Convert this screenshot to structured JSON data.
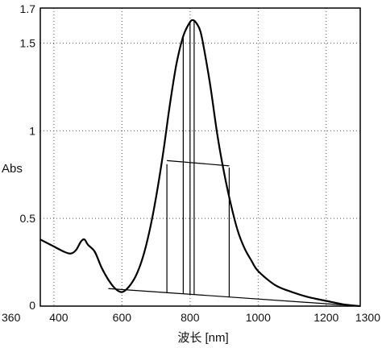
{
  "chart_data": {
    "type": "line",
    "xlabel": "波长 [nm]",
    "ylabel": "Abs",
    "xlim": [
      360,
      1300
    ],
    "ylim": [
      0,
      1.7
    ],
    "grid": true,
    "x_ticks": [
      {
        "value": 360,
        "label": "360"
      },
      {
        "value": 400,
        "label": "400"
      },
      {
        "value": 600,
        "label": "600"
      },
      {
        "value": 800,
        "label": "800"
      },
      {
        "value": 1000,
        "label": "1000"
      },
      {
        "value": 1200,
        "label": "1200"
      },
      {
        "value": 1300,
        "label": "1300"
      }
    ],
    "y_ticks": [
      {
        "value": 0,
        "label": "0"
      },
      {
        "value": 0.5,
        "label": "0.5"
      },
      {
        "value": 1,
        "label": "1"
      },
      {
        "value": 1.5,
        "label": "1.5"
      },
      {
        "value": 1.7,
        "label": "1.7"
      }
    ],
    "series": [
      {
        "x": [
          360,
          400,
          430,
          450,
          465,
          480,
          490,
          500,
          520,
          540,
          560,
          580,
          600,
          620,
          640,
          660,
          680,
          700,
          720,
          740,
          760,
          780,
          800,
          810,
          820,
          830,
          840,
          860,
          880,
          900,
          920,
          940,
          960,
          980,
          1000,
          1050,
          1100,
          1150,
          1200,
          1250,
          1300
        ],
        "y": [
          0.38,
          0.34,
          0.31,
          0.3,
          0.32,
          0.37,
          0.38,
          0.35,
          0.31,
          0.22,
          0.15,
          0.1,
          0.08,
          0.11,
          0.17,
          0.27,
          0.42,
          0.62,
          0.86,
          1.14,
          1.38,
          1.54,
          1.62,
          1.63,
          1.61,
          1.57,
          1.48,
          1.25,
          0.98,
          0.76,
          0.58,
          0.43,
          0.33,
          0.26,
          0.2,
          0.12,
          0.08,
          0.05,
          0.03,
          0.01,
          0.0
        ]
      }
    ],
    "annotations": {
      "baseline": {
        "x": [
          560,
          1300
        ],
        "y": [
          0.1,
          0.0
        ]
      },
      "vertical_lines": [
        {
          "x": 732,
          "y_top": 0.81
        },
        {
          "x": 780,
          "y_top": 1.54
        },
        {
          "x": 800,
          "y_top": 1.62
        },
        {
          "x": 812,
          "y_top": 1.63
        },
        {
          "x": 915,
          "y_top": 0.79
        }
      ],
      "half_height_line": {
        "x": [
          732,
          915
        ],
        "y": [
          0.83,
          0.8
        ]
      }
    }
  }
}
